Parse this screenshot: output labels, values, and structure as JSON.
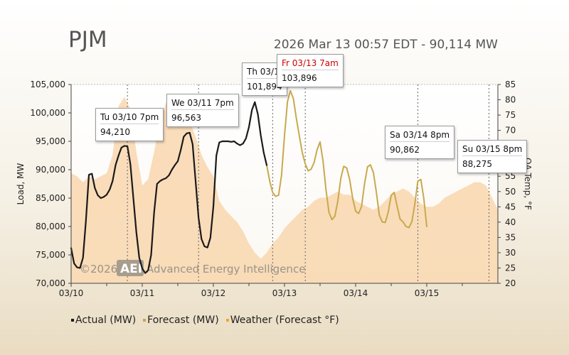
{
  "page": {
    "title": "PJM",
    "subtitle": "2026 Mar 13 00:57 EDT - 90,114 MW"
  },
  "legend": [
    {
      "label": "Actual (MW)",
      "color": "#1a1a1a"
    },
    {
      "label": "Forecast (MW)",
      "color": "#c8a94e"
    },
    {
      "label": "Weather (Forecast °F)",
      "color": "#f5a623"
    }
  ],
  "watermark": {
    "year": "©2026",
    "logo": "AEI",
    "name": "Advanced Energy Intelligence"
  },
  "callouts": [
    {
      "title": "Tu 03/10 7pm",
      "value": "94,210",
      "title_color": "#111111"
    },
    {
      "title": "We 03/11 7pm",
      "value": "96,563",
      "title_color": "#111111"
    },
    {
      "title": "Th 03/1",
      "value": "101,894",
      "title_color": "#111111"
    },
    {
      "title": "Fr 03/13 7am",
      "value": "103,896",
      "title_color": "#cc0000"
    },
    {
      "title": "Sa 03/14 8pm",
      "value": "90,862",
      "title_color": "#111111"
    },
    {
      "title": "Su 03/15 8pm",
      "value": "88,275",
      "title_color": "#111111"
    }
  ],
  "chart_data": {
    "type": "line",
    "xlabel": "",
    "ylabel": "Load, MW",
    "y2label": "OA Temp, °F",
    "ylim": [
      70000,
      105000
    ],
    "y2lim": [
      20,
      85
    ],
    "xlim": [
      0,
      144
    ],
    "x_unit": "hours since 03/10 00:00",
    "x_ticks": [
      {
        "x": 0,
        "label": "03/10"
      },
      {
        "x": 24,
        "label": "03/11"
      },
      {
        "x": 48,
        "label": "03/12"
      },
      {
        "x": 72,
        "label": "03/13"
      },
      {
        "x": 96,
        "label": "03/14"
      },
      {
        "x": 120,
        "label": "03/15"
      }
    ],
    "y_ticks": [
      "70,000",
      "75,000",
      "80,000",
      "85,000",
      "90,000",
      "95,000",
      "100,000",
      "105,000"
    ],
    "y2_ticks": [
      "20",
      "25",
      "30",
      "35",
      "40",
      "45",
      "50",
      "55",
      "60",
      "65",
      "70",
      "75",
      "80",
      "85"
    ],
    "grid": false,
    "legend_position": "bottom-left",
    "markers": [
      19,
      43,
      68,
      79,
      117,
      141
    ],
    "series": [
      {
        "name": "Actual (MW)",
        "color": "#1a1a1a",
        "x": [
          0,
          1,
          2,
          3,
          4,
          5,
          6,
          7,
          8,
          9,
          10,
          11,
          12,
          13,
          14,
          15,
          16,
          17,
          18,
          19,
          20,
          21,
          22,
          23,
          24,
          25,
          26,
          27,
          28,
          29,
          30,
          31,
          32,
          33,
          34,
          35,
          36,
          37,
          38,
          39,
          40,
          41,
          42,
          43,
          44,
          45,
          46,
          47,
          48,
          49,
          50,
          51,
          52,
          53,
          54,
          55,
          56,
          57,
          58,
          59,
          60,
          61,
          62,
          63,
          64,
          65,
          66,
          67,
          68,
          69,
          70,
          71
        ],
        "values": [
          76200,
          73500,
          72800,
          72700,
          74500,
          81000,
          89100,
          89300,
          86800,
          85500,
          85000,
          85200,
          85600,
          86500,
          88000,
          90800,
          92500,
          93900,
          94200,
          94100,
          91000,
          85000,
          79000,
          74500,
          72600,
          71800,
          72300,
          75000,
          82500,
          87500,
          88000,
          88300,
          88500,
          89000,
          90000,
          90800,
          91500,
          93500,
          95800,
          96400,
          96500,
          94500,
          88000,
          81500,
          77800,
          76500,
          76300,
          78000,
          83500,
          92500,
          94800,
          95000,
          95000,
          95000,
          94900,
          95000,
          94600,
          94300,
          94600,
          95500,
          97500,
          100500,
          101900,
          99800,
          96000,
          93000,
          90800,
          null,
          null,
          null,
          null,
          null
        ]
      },
      {
        "name": "Forecast (MW)",
        "color": "#c8a94e",
        "x": [
          66,
          67,
          68,
          69,
          70,
          71,
          72,
          73,
          74,
          75,
          76,
          77,
          78,
          79,
          80,
          81,
          82,
          83,
          84,
          85,
          86,
          87,
          88,
          89,
          90,
          91,
          92,
          93,
          94,
          95,
          96,
          97,
          98,
          99,
          100,
          101,
          102,
          103,
          104,
          105,
          106,
          107,
          108,
          109,
          110,
          111,
          112,
          113,
          114,
          115,
          116,
          117,
          118,
          119,
          120,
          121,
          122,
          123,
          124,
          125,
          126,
          127,
          128,
          129,
          130,
          131,
          132,
          133,
          134,
          135,
          136,
          137,
          138,
          139,
          140,
          141,
          142,
          143
        ],
        "values": [
          90800,
          88000,
          86000,
          85300,
          85500,
          89000,
          96000,
          102000,
          103900,
          102500,
          99000,
          96000,
          93000,
          91000,
          89800,
          90100,
          91300,
          93500,
          94900,
          91500,
          86500,
          82500,
          81200,
          81800,
          84500,
          88500,
          90600,
          90300,
          88200,
          85000,
          82700,
          82300,
          83500,
          87500,
          90500,
          90862,
          89500,
          86000,
          82000,
          80800,
          80700,
          82500,
          85500,
          86000,
          83600,
          81300,
          80800,
          80000,
          79800,
          80900,
          84000,
          88000,
          88275,
          85000,
          80000,
          null,
          null,
          null,
          null,
          null,
          null,
          null,
          null,
          null,
          null,
          null,
          null,
          null,
          null,
          null,
          null,
          null,
          null,
          null,
          null,
          null,
          null,
          null
        ]
      },
      {
        "name": "Weather (Forecast °F)",
        "color": "#f5a623",
        "x": [
          0,
          2,
          4,
          6,
          8,
          10,
          12,
          14,
          16,
          18,
          20,
          22,
          24,
          26,
          28,
          30,
          32,
          34,
          36,
          38,
          40,
          42,
          44,
          46,
          48,
          50,
          52,
          54,
          56,
          58,
          60,
          62,
          64,
          66,
          68,
          70,
          72,
          74,
          76,
          78,
          80,
          82,
          84,
          86,
          88,
          90,
          92,
          94,
          96,
          98,
          100,
          102,
          104,
          106,
          108,
          110,
          112,
          114,
          116,
          118,
          120,
          122,
          124,
          126,
          128,
          130,
          132,
          134,
          136,
          138,
          140,
          142,
          144
        ],
        "values": [
          56,
          55,
          53,
          55,
          54,
          55,
          56,
          62,
          78,
          81,
          77,
          63,
          52,
          54,
          63,
          73,
          79,
          80,
          78,
          76,
          73,
          68,
          62,
          58,
          55,
          47,
          44,
          42,
          40,
          37,
          33,
          30,
          28,
          30,
          33,
          35,
          38,
          40,
          42,
          44,
          45,
          47,
          48,
          48,
          49,
          50,
          49,
          49,
          47,
          46,
          45,
          44,
          45,
          47,
          49,
          50,
          51,
          50,
          48,
          46,
          45,
          45,
          46,
          48,
          49,
          50,
          51,
          52,
          53,
          53,
          52,
          48,
          44
        ]
      }
    ]
  }
}
